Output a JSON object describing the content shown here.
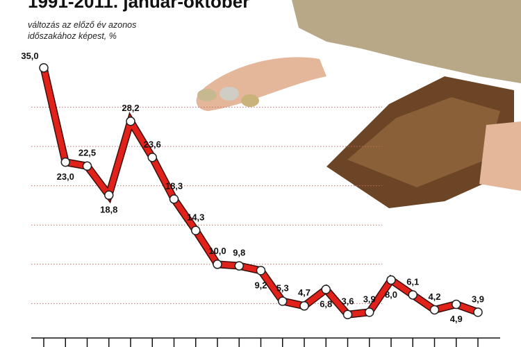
{
  "chart_data": {
    "type": "line",
    "title": "1991-2011. január-október",
    "subtitle": "változás az előző év azonos időszakához képest, %",
    "categories": [
      null,
      null,
      null,
      null,
      null,
      null,
      null,
      null,
      null,
      null,
      null,
      null,
      null,
      null,
      null,
      null,
      null,
      null,
      null,
      null,
      null
    ],
    "series": [
      {
        "name": null,
        "color": "#e0221b",
        "values": [
          35.0,
          23.0,
          22.5,
          18.8,
          28.2,
          23.6,
          18.3,
          14.3,
          10.0,
          9.8,
          9.2,
          5.3,
          4.7,
          6.8,
          3.6,
          3.9,
          8.0,
          6.1,
          4.2,
          4.9,
          3.9
        ],
        "value_labels": [
          "35,0",
          "23,0",
          "22,5",
          "18,8",
          "28,2",
          "23,6",
          "18,3",
          "14,3",
          "10,0",
          "9,8",
          "9,2",
          "5,3",
          "4,7",
          "6,8",
          "3,6",
          "3,9",
          "8,0",
          "6,1",
          "4,2",
          "4,9",
          "3,9"
        ]
      }
    ],
    "ylim": [
      0,
      40
    ],
    "yticks": [
      5,
      10,
      15,
      20,
      25,
      30
    ],
    "grid": true
  }
}
